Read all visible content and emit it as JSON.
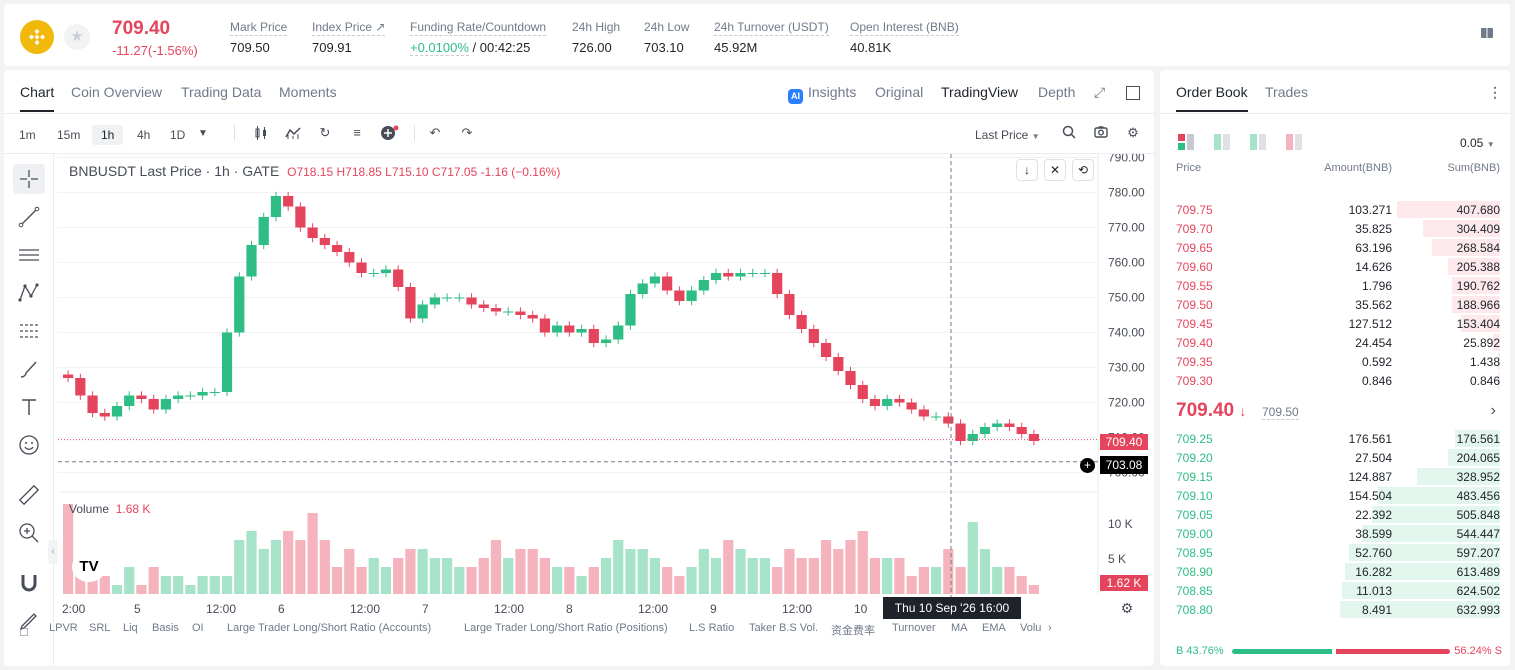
{
  "header": {
    "price": "709.40",
    "change": "-11.27(-1.56%)",
    "stats": [
      {
        "label": "Mark Price",
        "value": "709.50"
      },
      {
        "label": "Index Price ↗",
        "value": "709.91"
      },
      {
        "label": "Funding Rate/Countdown",
        "value_green": "+0.0100%",
        "value": " / 00:42:25"
      },
      {
        "label": "24h High",
        "value": "726.00"
      },
      {
        "label": "24h Low",
        "value": "703.10"
      },
      {
        "label": "24h Turnover (USDT)",
        "value": "45.92M"
      },
      {
        "label": "Open Interest (BNB)",
        "value": "40.81K"
      }
    ]
  },
  "chart_tabs": [
    "Chart",
    "Coin Overview",
    "Trading Data",
    "Moments"
  ],
  "view_tabs": {
    "insights": "Insights",
    "original": "Original",
    "tradingview": "TradingView",
    "depth": "Depth"
  },
  "intervals": [
    "1m",
    "15m",
    "1h",
    "4h",
    "1D"
  ],
  "last_price_select": "Last Price",
  "legend": {
    "title": "BNBUSDT Last Price · 1h · GATE",
    "ohlc": "O718.15  H718.85  L715.10  C717.05  -1.16 (−0.16%)"
  },
  "volume_legend": {
    "label": "Volume",
    "value": "1.68 K"
  },
  "price_badges": {
    "last": "709.40",
    "cursor": "703.08",
    "volume": "1.62 K"
  },
  "crosshair_time": "Thu 10 Sep '26   16:00",
  "bottom_indicators": [
    "LPVR",
    "SRL",
    "Liq",
    "Basis",
    "OI",
    "Large Trader Long/Short Ratio (Accounts)",
    "Large Trader Long/Short Ratio (Positions)",
    "L.S Ratio",
    "Taker B.S Vol.",
    "资金费率",
    "Turnover",
    "MA",
    "EMA",
    "Volu"
  ],
  "chart_data": {
    "type": "candlestick",
    "symbol": "BNBUSDT",
    "interval": "1h",
    "y_axis_ticks": [
      790,
      780,
      770,
      760,
      750,
      740,
      730,
      720,
      710,
      700
    ],
    "volume_axis_ticks": [
      "10 K",
      "5 K"
    ],
    "x_axis_ticks": [
      "2:00",
      "5",
      "12:00",
      "6",
      "12:00",
      "7",
      "12:00",
      "8",
      "12:00",
      "9",
      "12:00",
      "10",
      "12:00"
    ],
    "close_path": [
      727,
      722,
      717,
      716,
      719,
      722,
      721,
      718,
      721,
      722,
      722,
      723,
      723,
      740,
      756,
      765,
      773,
      779,
      776,
      770,
      767,
      765,
      763,
      760,
      757,
      757,
      758,
      753,
      744,
      748,
      750,
      750,
      750,
      748,
      747,
      746,
      746,
      745,
      744,
      740,
      742,
      740,
      741,
      737,
      738,
      742,
      751,
      754,
      756,
      752,
      749,
      752,
      755,
      757,
      756,
      757,
      757,
      757,
      751,
      745,
      741,
      737,
      733,
      729,
      725,
      721,
      719,
      721,
      720,
      718,
      716,
      716,
      714,
      709,
      711,
      713,
      714,
      713,
      711,
      709
    ],
    "volume_k": [
      10,
      3,
      4,
      2,
      1,
      3,
      1,
      3,
      2,
      2,
      1,
      2,
      2,
      2,
      6,
      7,
      5,
      6,
      7,
      6,
      9,
      6,
      3,
      5,
      3,
      4,
      3,
      4,
      5,
      5,
      4,
      4,
      3,
      3,
      4,
      6,
      4,
      5,
      5,
      4,
      3,
      3,
      2,
      3,
      4,
      6,
      5,
      5,
      4,
      3,
      2,
      3,
      5,
      4,
      6,
      5,
      4,
      4,
      3,
      5,
      4,
      4,
      6,
      5,
      6,
      7,
      4,
      4,
      4,
      2,
      3,
      3,
      5,
      3,
      8,
      5,
      3,
      3,
      2,
      1
    ]
  },
  "orderbook": {
    "tabs": [
      "Order Book",
      "Trades"
    ],
    "precision": "0.05",
    "headers": [
      "Price",
      "Amount(BNB)",
      "Sum(BNB)"
    ],
    "asks": [
      [
        "709.75",
        "103.271",
        "407.680"
      ],
      [
        "709.70",
        "35.825",
        "304.409"
      ],
      [
        "709.65",
        "63.196",
        "268.584"
      ],
      [
        "709.60",
        "14.626",
        "205.388"
      ],
      [
        "709.55",
        "1.796",
        "190.762"
      ],
      [
        "709.50",
        "35.562",
        "188.966"
      ],
      [
        "709.45",
        "127.512",
        "153.404"
      ],
      [
        "709.40",
        "24.454",
        "25.892"
      ],
      [
        "709.35",
        "0.592",
        "1.438"
      ],
      [
        "709.30",
        "0.846",
        "0.846"
      ]
    ],
    "mid_price": "709.40",
    "mark_price": "709.50",
    "bids": [
      [
        "709.25",
        "176.561",
        "176.561"
      ],
      [
        "709.20",
        "27.504",
        "204.065"
      ],
      [
        "709.15",
        "124.887",
        "328.952"
      ],
      [
        "709.10",
        "154.504",
        "483.456"
      ],
      [
        "709.05",
        "22.392",
        "505.848"
      ],
      [
        "709.00",
        "38.599",
        "544.447"
      ],
      [
        "708.95",
        "52.760",
        "597.207"
      ],
      [
        "708.90",
        "16.282",
        "613.489"
      ],
      [
        "708.85",
        "11.013",
        "624.502"
      ],
      [
        "708.80",
        "8.491",
        "632.993"
      ]
    ],
    "buy_ratio": "B 43.76%",
    "sell_ratio": "56.24% S"
  },
  "colors": {
    "up": "#2ebd85",
    "down": "#e5455c",
    "accent": "#f0b90b"
  }
}
